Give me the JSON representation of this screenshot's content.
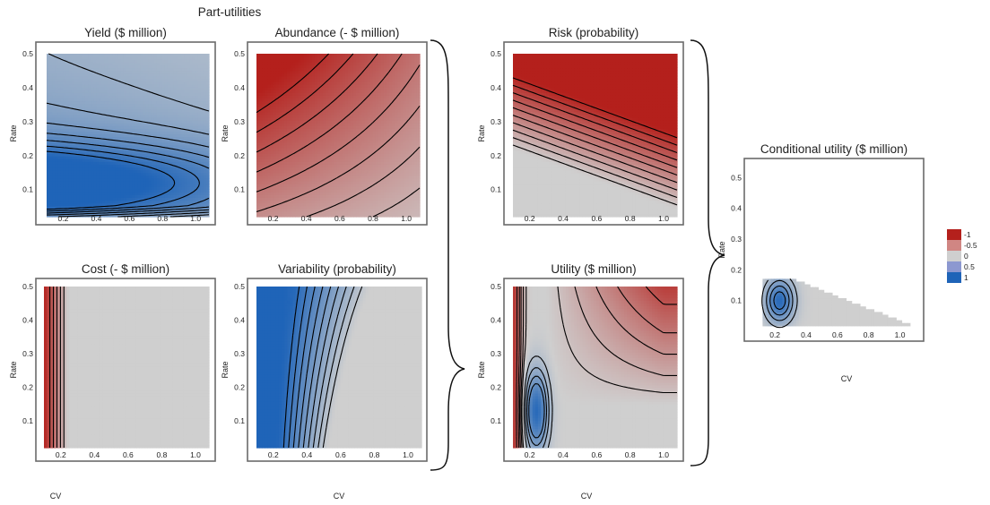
{
  "figure": {
    "group_title": "Part-utilities",
    "colors": {
      "red": "#b4201c",
      "blue": "#1f64b8",
      "neutral": "#cfcfcf",
      "contour": "#000000",
      "frame": "#6b6b6b"
    }
  },
  "chart_data": [
    {
      "id": "yield",
      "type": "heatmap",
      "title": "Yield ($ million)",
      "xlabel": "",
      "ylabel": "Rate",
      "xlim": [
        0.1,
        1.08
      ],
      "ylim": [
        0.02,
        0.5
      ],
      "xticks": [
        "0.2",
        "0.4",
        "0.6",
        "0.8",
        "1.0"
      ],
      "yticks": [
        "0.1",
        "0.2",
        "0.3",
        "0.4",
        "0.5"
      ],
      "color_scale": "blue",
      "contour_levels": [
        0.1,
        0.2,
        0.3,
        0.4,
        0.5,
        0.6,
        0.7,
        0.8,
        0.9
      ]
    },
    {
      "id": "abundance",
      "type": "heatmap",
      "title": "Abundance (- $ million)",
      "xlabel": "CV",
      "ylabel": "Rate",
      "xlim": [
        0.1,
        1.08
      ],
      "ylim": [
        0.02,
        0.5
      ],
      "xticks": [
        "0.2",
        "0.4",
        "0.6",
        "0.8",
        "1.0"
      ],
      "yticks": [
        "0.1",
        "0.2",
        "0.3",
        "0.4",
        "0.5"
      ],
      "color_scale": "red",
      "contour_levels": [
        0.1,
        0.2,
        0.3,
        0.4,
        0.5,
        0.6,
        0.7,
        0.8,
        0.9
      ]
    },
    {
      "id": "cost",
      "type": "heatmap",
      "title": "Cost (- $ million)",
      "xlabel": "CV",
      "ylabel": "Rate",
      "xlim": [
        0.1,
        1.08
      ],
      "ylim": [
        0.02,
        0.5
      ],
      "xticks": [
        "0.2",
        "0.4",
        "0.6",
        "0.8",
        "1.0"
      ],
      "yticks": [
        "0.1",
        "0.2",
        "0.3",
        "0.4",
        "0.5"
      ],
      "color_scale": "red",
      "contour_levels": [
        0.15,
        0.3,
        0.45,
        0.6,
        0.75
      ]
    },
    {
      "id": "variability",
      "type": "heatmap",
      "title": "Variability (probability)",
      "xlabel": "CV",
      "ylabel": "Rate",
      "xlim": [
        0.1,
        1.08
      ],
      "ylim": [
        0.02,
        0.5
      ],
      "xticks": [
        "0.2",
        "0.4",
        "0.6",
        "0.8",
        "1.0"
      ],
      "yticks": [
        "0.1",
        "0.2",
        "0.3",
        "0.4",
        "0.5"
      ],
      "color_scale": "blue",
      "contour_levels": [
        0.1,
        0.2,
        0.3,
        0.4,
        0.5,
        0.6,
        0.7,
        0.8,
        0.9
      ]
    },
    {
      "id": "risk",
      "type": "heatmap",
      "title": "Risk (probability)",
      "xlabel": "",
      "ylabel": "Rate",
      "xlim": [
        0.1,
        1.08
      ],
      "ylim": [
        0.02,
        0.5
      ],
      "xticks": [
        "0.2",
        "0.4",
        "0.6",
        "0.8",
        "1.0"
      ],
      "yticks": [
        "0.1",
        "0.2",
        "0.3",
        "0.4",
        "0.5"
      ],
      "color_scale": "red",
      "contour_levels": [
        0.05,
        0.15,
        0.25,
        0.35,
        0.45,
        0.55,
        0.65,
        0.75,
        0.85,
        0.95
      ]
    },
    {
      "id": "utility",
      "type": "heatmap",
      "title": "Utility ($ million)",
      "xlabel": "CV",
      "ylabel": "Rate",
      "xlim": [
        0.1,
        1.08
      ],
      "ylim": [
        0.02,
        0.5
      ],
      "xticks": [
        "0.2",
        "0.4",
        "0.6",
        "0.8",
        "1.0"
      ],
      "yticks": [
        "0.1",
        "0.2",
        "0.3",
        "0.4",
        "0.5"
      ],
      "color_scale": "diverging",
      "contour_levels": [
        -0.9,
        -0.7,
        -0.5,
        -0.35,
        -0.2,
        -0.08,
        0.15,
        0.3,
        0.45,
        0.6
      ]
    },
    {
      "id": "conditional",
      "type": "heatmap",
      "title": "Conditional utility ($ million)",
      "xlabel": "CV",
      "ylabel": "Rate",
      "xlim": [
        0.05,
        1.1
      ],
      "ylim": [
        0.0,
        0.53
      ],
      "xticks": [
        "0.2",
        "0.4",
        "0.6",
        "0.8",
        "1.0"
      ],
      "yticks": [
        "0.1",
        "0.2",
        "0.3",
        "0.4",
        "0.5"
      ],
      "color_scale": "diverging",
      "contour_levels": [
        0.2,
        0.4,
        0.6,
        0.8
      ],
      "legend": {
        "placement": "right",
        "entries": [
          {
            "label": "-1",
            "color": "#b4201c"
          },
          {
            "label": "-0.5",
            "color": "#d08683"
          },
          {
            "label": "0",
            "color": "#cfcfcf"
          },
          {
            "label": "0.5",
            "color": "#8c98d0"
          },
          {
            "label": "1",
            "color": "#1f64b8"
          }
        ]
      }
    }
  ]
}
